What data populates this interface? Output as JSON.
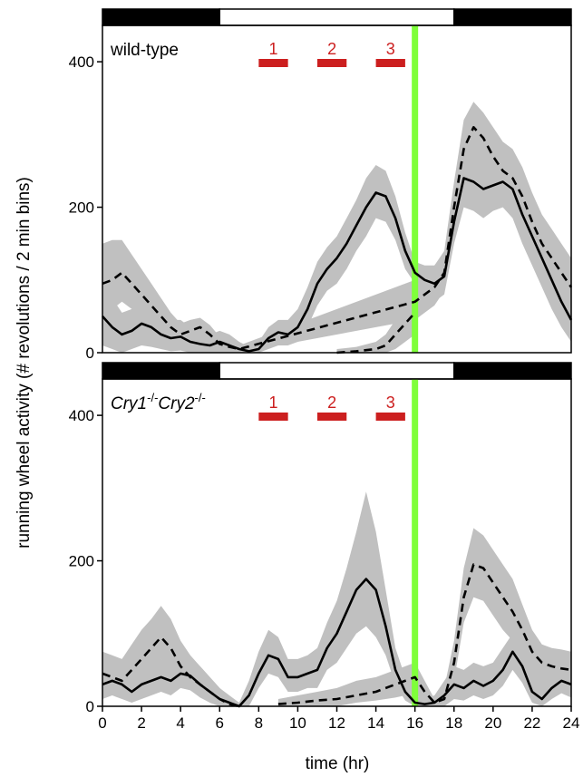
{
  "chart_data": {
    "type": "line",
    "xlabel": "time (hr)",
    "ylabel": "running wheel activity (# revolutions / 2 min bins)",
    "xlim": [
      0,
      24
    ],
    "ylim": [
      0,
      450
    ],
    "x_ticks": [
      0,
      2,
      4,
      6,
      8,
      10,
      12,
      14,
      16,
      18,
      20,
      22,
      24
    ],
    "y_ticks": [
      0,
      200,
      400
    ],
    "light_dark_bar": [
      {
        "start": 0,
        "end": 6,
        "state": "dark"
      },
      {
        "start": 6,
        "end": 18,
        "state": "light"
      },
      {
        "start": 18,
        "end": 24,
        "state": "dark"
      }
    ],
    "light_pulse_hr": 16,
    "windows": [
      {
        "label": "1",
        "start": 8,
        "end": 9.5
      },
      {
        "label": "2",
        "start": 11,
        "end": 12.5
      },
      {
        "label": "3",
        "start": 14,
        "end": 15.5
      }
    ],
    "colors": {
      "band": "#c0c0c0",
      "pulse": "#7fff3a",
      "windows": "#cc1f1f"
    },
    "panels": [
      {
        "label_main": "wild-type",
        "label_sup1": "",
        "label_mid": "",
        "label_sup2": "",
        "series": [
          {
            "style": "solid",
            "x": [
              0,
              0.5,
              1,
              1.5,
              2,
              2.5,
              3,
              3.5,
              4,
              4.5,
              5,
              5.5,
              6,
              6.5,
              7,
              7.5,
              8,
              8.5,
              9,
              9.5,
              10,
              10.5,
              11,
              11.5,
              12,
              12.5,
              13,
              13.5,
              14,
              14.5,
              15,
              15.5,
              16,
              16.5,
              17,
              17.5,
              18,
              18.5,
              19,
              19.5,
              20,
              20.5,
              21,
              21.5,
              22,
              22.5,
              23,
              23.5,
              24
            ],
            "y": [
              50,
              35,
              25,
              30,
              40,
              35,
              25,
              20,
              22,
              15,
              12,
              10,
              15,
              10,
              5,
              2,
              5,
              20,
              28,
              25,
              35,
              60,
              95,
              115,
              130,
              150,
              175,
              200,
              220,
              215,
              185,
              140,
              110,
              100,
              95,
              105,
              180,
              240,
              235,
              225,
              230,
              235,
              225,
              190,
              160,
              130,
              100,
              70,
              45
            ],
            "band_lo": [
              10,
              5,
              0,
              5,
              10,
              8,
              5,
              2,
              3,
              0,
              0,
              0,
              0,
              0,
              0,
              0,
              0,
              5,
              10,
              10,
              15,
              35,
              65,
              85,
              95,
              115,
              140,
              160,
              185,
              180,
              155,
              115,
              95,
              80,
              70,
              80,
              150,
              200,
              195,
              185,
              195,
              200,
              185,
              150,
              120,
              90,
              60,
              35,
              15
            ],
            "band_hi": [
              100,
              75,
              55,
              60,
              70,
              65,
              55,
              45,
              45,
              35,
              28,
              25,
              30,
              25,
              15,
              8,
              15,
              35,
              45,
              45,
              60,
              90,
              125,
              145,
              160,
              185,
              210,
              240,
              258,
              250,
              215,
              165,
              125,
              120,
              120,
              135,
              220,
              280,
              275,
              265,
              270,
              275,
              265,
              230,
              200,
              170,
              140,
              110,
              80
            ]
          },
          {
            "style": "dashed",
            "x": [
              0,
              0.5,
              1,
              1.5,
              2,
              2.5,
              3,
              3.5,
              4,
              4.5,
              5,
              5.5,
              6,
              6.5,
              7,
              16,
              16.5,
              17,
              17.5,
              18,
              18.5,
              19,
              19.5,
              20,
              20.5,
              21,
              21.5,
              22,
              22.5,
              23,
              23.5,
              24
            ],
            "y": [
              95,
              100,
              110,
              95,
              80,
              65,
              50,
              35,
              25,
              30,
              35,
              25,
              12,
              8,
              5,
              70,
              80,
              90,
              110,
              200,
              280,
              310,
              295,
              270,
              250,
              240,
              215,
              180,
              150,
              130,
              110,
              90
            ],
            "band_lo": [
              55,
              60,
              70,
              60,
              50,
              40,
              30,
              20,
              10,
              15,
              20,
              12,
              3,
              0,
              0,
              45,
              55,
              65,
              85,
              170,
              245,
              270,
              255,
              230,
              210,
              200,
              175,
              140,
              110,
              90,
              70,
              50
            ],
            "band_hi": [
              150,
              155,
              155,
              135,
              115,
              95,
              75,
              55,
              40,
              45,
              48,
              38,
              22,
              15,
              10,
              100,
              110,
              120,
              140,
              235,
              320,
              345,
              330,
              310,
              290,
              280,
              255,
              220,
              190,
              170,
              150,
              130
            ]
          },
          {
            "style": "dashed",
            "x": [
              12,
              13,
              14,
              14.5,
              15,
              15.5,
              16
            ],
            "y": [
              0,
              2,
              5,
              10,
              25,
              40,
              55
            ],
            "band_lo": [
              0,
              0,
              0,
              0,
              5,
              15,
              25
            ],
            "band_hi": [
              5,
              8,
              15,
              25,
              45,
              65,
              85
            ]
          }
        ]
      },
      {
        "label_main": "Cry1",
        "label_sup1": "-/-",
        "label_mid": "Cry2",
        "label_sup2": "-/-",
        "series": [
          {
            "style": "solid",
            "x": [
              0,
              0.5,
              1,
              1.5,
              2,
              2.5,
              3,
              3.5,
              4,
              4.5,
              5,
              5.5,
              6,
              6.5,
              7,
              7.5,
              8,
              8.5,
              9,
              9.5,
              10,
              10.5,
              11,
              11.5,
              12,
              12.5,
              13,
              13.5,
              14,
              14.5,
              15,
              15.5,
              16,
              16.5,
              17,
              17.5,
              18,
              18.5,
              19,
              19.5,
              20,
              20.5,
              21,
              21.5,
              22,
              22.5,
              23,
              23.5,
              24
            ],
            "y": [
              30,
              35,
              30,
              20,
              30,
              35,
              40,
              35,
              45,
              42,
              30,
              20,
              10,
              5,
              0,
              15,
              45,
              70,
              65,
              40,
              40,
              45,
              50,
              80,
              100,
              130,
              160,
              175,
              160,
              110,
              50,
              20,
              5,
              3,
              5,
              15,
              30,
              25,
              35,
              28,
              35,
              50,
              75,
              55,
              20,
              10,
              25,
              35,
              30
            ],
            "band_lo": [
              10,
              15,
              10,
              5,
              10,
              15,
              20,
              15,
              25,
              22,
              12,
              5,
              0,
              0,
              0,
              0,
              25,
              45,
              40,
              20,
              20,
              25,
              25,
              50,
              60,
              80,
              100,
              110,
              95,
              70,
              30,
              8,
              0,
              0,
              0,
              0,
              10,
              8,
              15,
              10,
              15,
              28,
              50,
              32,
              5,
              0,
              10,
              18,
              12
            ],
            "band_hi": [
              60,
              65,
              55,
              45,
              55,
              60,
              65,
              60,
              70,
              68,
              55,
              40,
              25,
              15,
              5,
              35,
              75,
              105,
              95,
              65,
              65,
              70,
              80,
              115,
              145,
              190,
              240,
              295,
              240,
              160,
              80,
              40,
              15,
              10,
              15,
              35,
              55,
              50,
              60,
              55,
              60,
              80,
              100,
              85,
              50,
              40,
              55,
              65,
              60
            ]
          },
          {
            "style": "dashed",
            "x": [
              0,
              0.5,
              1,
              1.5,
              2,
              2.5,
              3,
              3.5,
              4,
              4.5,
              5,
              5.5,
              6,
              6.5,
              7
            ],
            "y": [
              45,
              40,
              35,
              50,
              65,
              80,
              95,
              80,
              55,
              40,
              30,
              20,
              10,
              3,
              0
            ],
            "band_lo": [
              25,
              20,
              15,
              25,
              40,
              55,
              65,
              55,
              35,
              22,
              15,
              5,
              0,
              0,
              0
            ],
            "band_hi": [
              75,
              70,
              65,
              85,
              105,
              120,
              138,
              120,
              90,
              70,
              55,
              40,
              25,
              10,
              3
            ]
          },
          {
            "style": "dashed",
            "x": [
              9,
              10,
              11,
              12,
              13,
              14,
              14.5,
              15,
              15.5,
              16,
              16.5,
              17,
              17.5,
              18,
              18.5,
              19,
              19.5,
              20,
              20.5,
              21,
              21.5,
              22,
              22.5,
              23,
              23.5,
              24
            ],
            "y": [
              3,
              5,
              8,
              10,
              15,
              20,
              25,
              30,
              35,
              40,
              20,
              5,
              10,
              60,
              150,
              195,
              190,
              170,
              150,
              130,
              105,
              75,
              60,
              55,
              52,
              50
            ],
            "band_lo": [
              0,
              0,
              0,
              0,
              5,
              8,
              10,
              12,
              15,
              18,
              5,
              0,
              0,
              35,
              115,
              150,
              145,
              125,
              105,
              90,
              70,
              45,
              35,
              30,
              30,
              30
            ],
            "band_hi": [
              10,
              15,
              20,
              25,
              35,
              40,
              45,
              50,
              55,
              60,
              35,
              10,
              25,
              90,
              190,
              245,
              235,
              215,
              195,
              175,
              140,
              105,
              85,
              80,
              78,
              75
            ]
          }
        ]
      }
    ]
  }
}
